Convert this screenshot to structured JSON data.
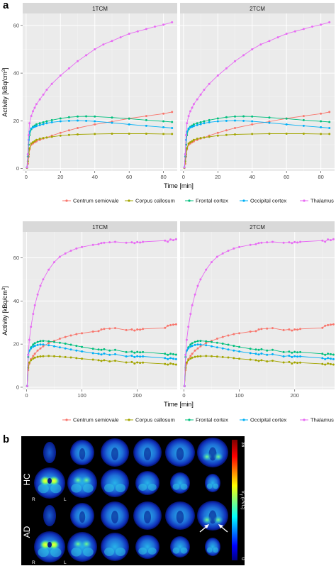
{
  "panel_labels": {
    "a": "a",
    "b": "b"
  },
  "chart_data": [
    {
      "type": "scatter",
      "facets": [
        "1TCM",
        "2TCM"
      ],
      "xlabel": "Time [min]",
      "ylabel": "Activity [kBq/cm³]",
      "ylabel_main": "Activity [kBq/cm",
      "ylabel_sup": "3",
      "ylabel_end": "]",
      "xlim": [
        -2,
        88
      ],
      "ylim": [
        -1,
        65
      ],
      "xticks": [
        0,
        20,
        40,
        60,
        80
      ],
      "yticks": [
        0,
        20,
        40,
        60
      ],
      "legend_position": "bottom",
      "grid": true,
      "series": [
        {
          "name": "Centrum semiovale",
          "color": "#f8766d",
          "x": [
            0.5,
            1,
            1.5,
            2,
            3,
            4,
            5,
            6,
            8,
            10,
            12,
            15,
            20,
            25,
            30,
            40,
            50,
            60,
            70,
            80,
            85
          ],
          "y": [
            0.3,
            2,
            5,
            8,
            10,
            10.5,
            11,
            11.4,
            12,
            12.6,
            13,
            13.8,
            15,
            16,
            17,
            18.5,
            19.7,
            21,
            22,
            23,
            23.7
          ]
        },
        {
          "name": "Corpus callosum",
          "color": "#a3a500",
          "x": [
            0.5,
            1,
            1.5,
            2,
            3,
            4,
            5,
            6,
            8,
            10,
            12,
            15,
            20,
            25,
            30,
            40,
            50,
            60,
            70,
            80,
            85
          ],
          "y": [
            0.3,
            3,
            6,
            8.5,
            10.5,
            11,
            11.5,
            12,
            12.5,
            12.8,
            13,
            13.3,
            13.8,
            14.1,
            14.3,
            14.5,
            14.6,
            14.6,
            14.6,
            14.5,
            14.5
          ]
        },
        {
          "name": "Frontal cortex",
          "color": "#00bf7d",
          "x": [
            0.5,
            1,
            1.5,
            2,
            3,
            4,
            5,
            6,
            8,
            10,
            12,
            15,
            20,
            25,
            30,
            35,
            40,
            50,
            60,
            70,
            80,
            85
          ],
          "y": [
            0.5,
            5,
            10,
            14,
            16.5,
            17.5,
            18,
            18.5,
            19,
            19.4,
            19.8,
            20.3,
            21,
            21.5,
            21.8,
            21.9,
            21.8,
            21.4,
            20.9,
            20.3,
            19.8,
            19.5
          ]
        },
        {
          "name": "Occipital cortex",
          "color": "#00b0f6",
          "x": [
            0.5,
            1,
            1.5,
            2,
            3,
            4,
            5,
            6,
            8,
            10,
            12,
            15,
            20,
            25,
            30,
            35,
            40,
            50,
            60,
            70,
            80,
            85
          ],
          "y": [
            0.5,
            6,
            12,
            15.5,
            16.8,
            17.2,
            17.5,
            17.8,
            18.2,
            18.6,
            19,
            19.4,
            19.8,
            20,
            20.1,
            20,
            19.8,
            19.2,
            18.5,
            17.9,
            17.3,
            17
          ]
        },
        {
          "name": "Thalamus",
          "color": "#e76bf3",
          "x": [
            0.5,
            1,
            1.5,
            2,
            3,
            4,
            5,
            6,
            8,
            10,
            12,
            15,
            20,
            25,
            30,
            35,
            40,
            45,
            50,
            55,
            60,
            65,
            70,
            75,
            80,
            85
          ],
          "y": [
            0.5,
            6,
            14,
            19,
            22,
            24,
            25.5,
            27,
            29,
            31,
            33,
            35.5,
            39,
            42,
            45,
            47.5,
            50,
            52,
            53.5,
            55,
            56.5,
            57.5,
            58.5,
            59.5,
            60.3,
            61.3
          ]
        }
      ]
    },
    {
      "type": "scatter",
      "facets": [
        "1TCM",
        "2TCM"
      ],
      "xlabel": "Time [min]",
      "ylabel": "Activity [kBq/cm³]",
      "ylabel_main": "Activity [kBq/cm",
      "ylabel_sup": "3",
      "ylabel_end": "]",
      "xlim": [
        -7,
        272
      ],
      "ylim": [
        -1,
        72
      ],
      "xticks": [
        0,
        100,
        200
      ],
      "yticks": [
        0,
        20,
        40,
        60
      ],
      "legend_position": "bottom",
      "grid": true,
      "series": [
        {
          "name": "Centrum semiovale",
          "color": "#f8766d",
          "x": [
            1,
            3,
            5,
            8,
            12,
            15,
            20,
            25,
            30,
            40,
            50,
            60,
            70,
            80,
            90,
            100,
            120,
            130,
            135,
            140,
            150,
            160,
            180,
            190,
            195,
            200,
            205,
            210,
            250,
            255,
            260,
            265,
            270
          ],
          "y": [
            0.5,
            8,
            11,
            13,
            14.5,
            15.5,
            17,
            18,
            19,
            20.5,
            21.5,
            22.5,
            23.3,
            24,
            24.6,
            25,
            25.8,
            26,
            26.8,
            27,
            27.2,
            27.4,
            26.5,
            26.8,
            26.3,
            26.8,
            26.7,
            27,
            27.5,
            28.5,
            28.8,
            29,
            29.2
          ]
        },
        {
          "name": "Corpus callosum",
          "color": "#a3a500",
          "x": [
            1,
            3,
            5,
            8,
            12,
            15,
            20,
            25,
            30,
            40,
            50,
            60,
            70,
            80,
            90,
            100,
            120,
            130,
            135,
            140,
            150,
            160,
            180,
            190,
            195,
            200,
            205,
            210,
            250,
            255,
            260,
            265,
            270
          ],
          "y": [
            0.5,
            9,
            11.5,
            12.5,
            13.3,
            13.7,
            14.1,
            14.3,
            14.4,
            14.5,
            14.4,
            14.2,
            14,
            13.8,
            13.5,
            13.2,
            12.8,
            12.5,
            12.2,
            12.5,
            12,
            12.3,
            11.5,
            11.7,
            11,
            11.5,
            11.3,
            11.4,
            10.8,
            10.5,
            11,
            10.7,
            10.5
          ]
        },
        {
          "name": "Frontal cortex",
          "color": "#00bf7d",
          "x": [
            1,
            3,
            5,
            8,
            12,
            15,
            20,
            25,
            30,
            40,
            50,
            60,
            70,
            80,
            90,
            100,
            120,
            130,
            135,
            140,
            150,
            160,
            180,
            190,
            195,
            200,
            205,
            210,
            250,
            255,
            260,
            265,
            270
          ],
          "y": [
            0.5,
            14,
            17,
            18.5,
            19.8,
            20.4,
            21,
            21.4,
            21.5,
            21.3,
            21,
            20.6,
            20.2,
            19.7,
            19.2,
            18.7,
            17.8,
            17.5,
            17.3,
            17.6,
            17,
            17.3,
            16.3,
            16.5,
            16,
            16.4,
            16.2,
            16.3,
            15.5,
            15,
            15.5,
            15.3,
            15.1
          ]
        },
        {
          "name": "Occipital cortex",
          "color": "#00b0f6",
          "x": [
            1,
            3,
            5,
            8,
            12,
            15,
            20,
            25,
            30,
            40,
            50,
            60,
            70,
            80,
            90,
            100,
            120,
            130,
            135,
            140,
            150,
            160,
            180,
            190,
            195,
            200,
            205,
            210,
            250,
            255,
            260,
            265,
            270
          ],
          "y": [
            0.5,
            15,
            17,
            18,
            18.8,
            19.2,
            19.6,
            19.8,
            19.8,
            19.5,
            19,
            18.5,
            18,
            17.5,
            17,
            16.6,
            15.8,
            15.5,
            15.2,
            15.6,
            15,
            15.3,
            14.3,
            14.6,
            14,
            14.4,
            14.2,
            14.3,
            13.5,
            13,
            13.5,
            13.2,
            13
          ]
        },
        {
          "name": "Thalamus",
          "color": "#e76bf3",
          "x": [
            1,
            3,
            5,
            8,
            12,
            15,
            20,
            25,
            30,
            40,
            50,
            60,
            70,
            80,
            90,
            100,
            120,
            130,
            135,
            140,
            150,
            160,
            180,
            190,
            195,
            200,
            205,
            210,
            250,
            255,
            260,
            265,
            270
          ],
          "y": [
            0.5,
            15,
            22,
            28,
            34,
            38,
            43,
            47,
            50,
            54.5,
            58,
            60.5,
            62,
            63.3,
            64.3,
            65,
            66,
            66.3,
            66.8,
            67,
            67.2,
            67.4,
            67,
            67.2,
            66.8,
            67.3,
            67.1,
            67.4,
            68,
            67.5,
            68.5,
            68.2,
            68.6
          ]
        }
      ]
    }
  ],
  "brain_panel": {
    "row_labels": [
      "HC",
      "AD"
    ],
    "side_left": "R",
    "side_right": "L",
    "colorbar_max": "36",
    "colorbar_min": "0",
    "colorbar_label": "V",
    "colorbar_label_sub": "T",
    "colorbar_label_end": " (PVC)"
  }
}
